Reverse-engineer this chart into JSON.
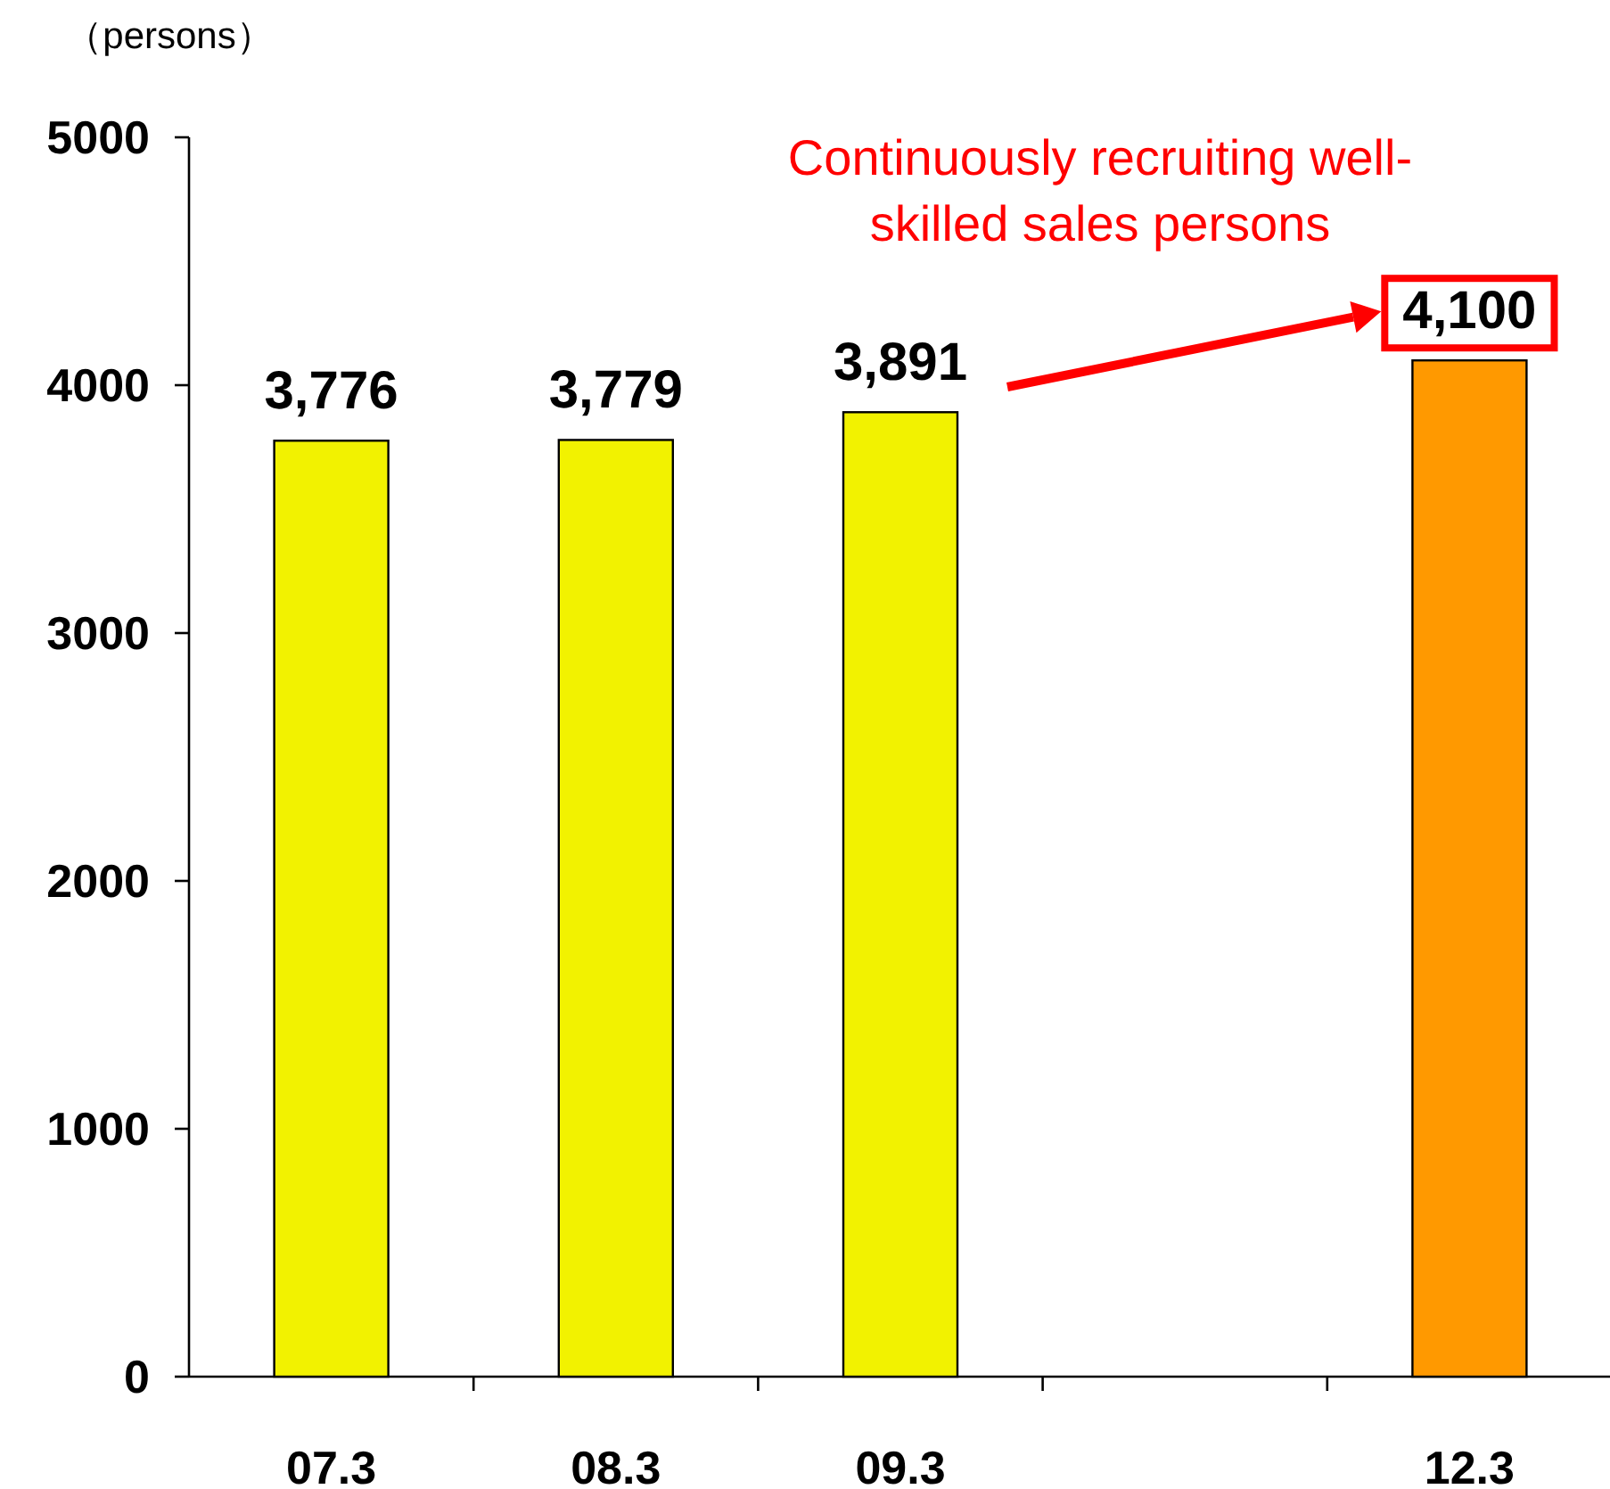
{
  "chart_data": {
    "type": "bar",
    "ylabel": "（persons）",
    "categories": [
      "07.3",
      "08.3",
      "09.3",
      null,
      "12.3"
    ],
    "values": [
      3776,
      3779,
      3891,
      null,
      4100
    ],
    "colors": [
      "#f2f200",
      "#f2f200",
      "#f2f200",
      null,
      "#ff9900"
    ],
    "value_labels": [
      "3,776",
      "3,779",
      "3,891",
      null,
      "4,100"
    ],
    "ylim": [
      0,
      5000
    ],
    "yticks": [
      0,
      1000,
      2000,
      3000,
      4000,
      5000
    ],
    "annotations": [
      "Continuously recruiting well-skilled sales persons"
    ]
  }
}
